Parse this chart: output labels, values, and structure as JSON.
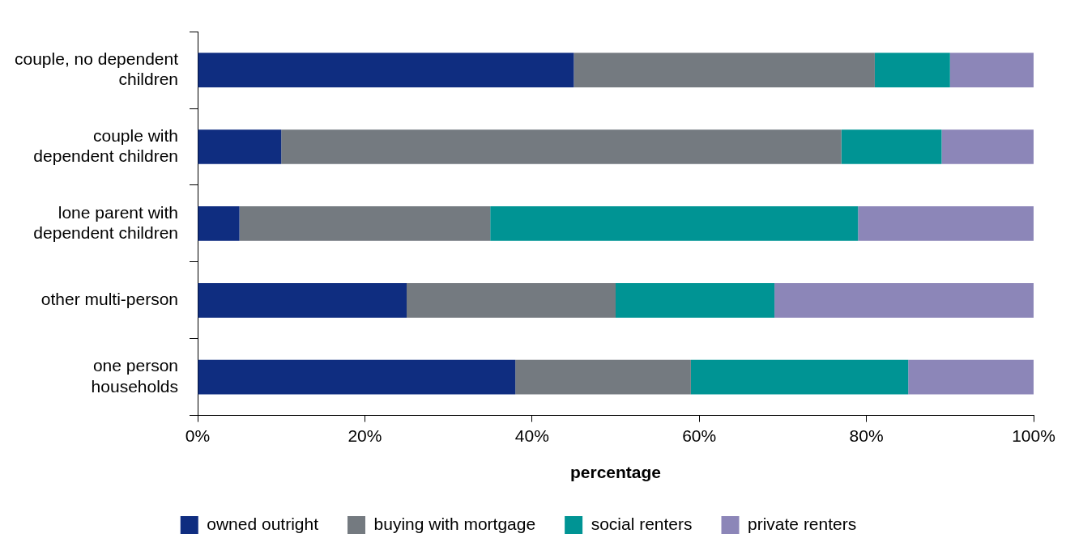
{
  "chart_data": {
    "type": "bar",
    "orientation": "horizontal",
    "stacked": true,
    "xlabel": "percentage",
    "categories": [
      "couple, no dependent children",
      "couple with dependent children",
      "lone parent with dependent children",
      "other multi-person",
      "one person households"
    ],
    "series": [
      {
        "name": "owned outright",
        "color": "#0f2d80",
        "values": [
          45,
          10,
          5,
          25,
          38
        ]
      },
      {
        "name": "buying with mortgage",
        "color": "#747a80",
        "values": [
          36,
          67,
          30,
          25,
          21
        ]
      },
      {
        "name": "social renters",
        "color": "#009494",
        "values": [
          9,
          12,
          44,
          19,
          26
        ]
      },
      {
        "name": "private renters",
        "color": "#8c86b8",
        "values": [
          10,
          11,
          21,
          31,
          15
        ]
      }
    ],
    "xlim": [
      0,
      100
    ],
    "xticks": [
      {
        "value": 0,
        "label": "0%"
      },
      {
        "value": 20,
        "label": "20%"
      },
      {
        "value": 40,
        "label": "40%"
      },
      {
        "value": 60,
        "label": "60%"
      },
      {
        "value": 80,
        "label": "80%"
      },
      {
        "value": 100,
        "label": "100%"
      }
    ],
    "grid": false,
    "legend": "bottom"
  }
}
